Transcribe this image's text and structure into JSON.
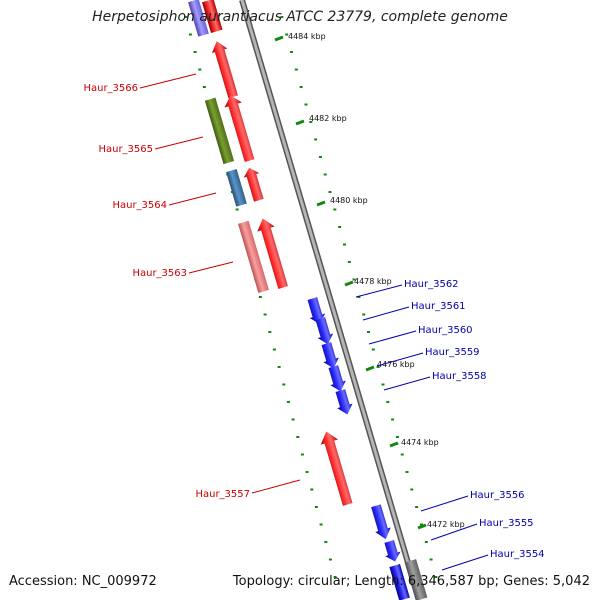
{
  "title": "Herpetosiphon aurantiacus ATCC 23779, complete genome",
  "footer": {
    "accession": "Accession: NC_009972",
    "summary": "Topology: circular; Length: 6,346,587 bp; Genes: 5,042"
  },
  "colors": {
    "forward_strand": "#ff0000",
    "reverse_strand": "#1010ff",
    "backbone": "#999999",
    "gc_ticks": "#118811",
    "label_red": "#cc0000",
    "label_blue": "#0000aa",
    "olive_gene": "#6b8e23",
    "steel_gene": "#4682b4",
    "pink_gene": "#f08080",
    "grey_gene": "#808080",
    "lavender_gene": "#8a7fff"
  },
  "kbp_ticks": [
    "4484 kbp",
    "4482 kbp",
    "4480 kbp",
    "4478 kbp",
    "4476 kbp",
    "4474 kbp",
    "4472 kbp"
  ],
  "gene_labels": [
    {
      "text": "Haur_3566",
      "strand": "forward"
    },
    {
      "text": "Haur_3565",
      "strand": "forward"
    },
    {
      "text": "Haur_3564",
      "strand": "forward"
    },
    {
      "text": "Haur_3563",
      "strand": "forward"
    },
    {
      "text": "Haur_3557",
      "strand": "forward"
    },
    {
      "text": "Haur_3562",
      "strand": "reverse"
    },
    {
      "text": "Haur_3561",
      "strand": "reverse"
    },
    {
      "text": "Haur_3560",
      "strand": "reverse"
    },
    {
      "text": "Haur_3559",
      "strand": "reverse"
    },
    {
      "text": "Haur_3558",
      "strand": "reverse"
    },
    {
      "text": "Haur_3556",
      "strand": "reverse"
    },
    {
      "text": "Haur_3555",
      "strand": "reverse"
    },
    {
      "text": "Haur_3554",
      "strand": "reverse"
    }
  ]
}
